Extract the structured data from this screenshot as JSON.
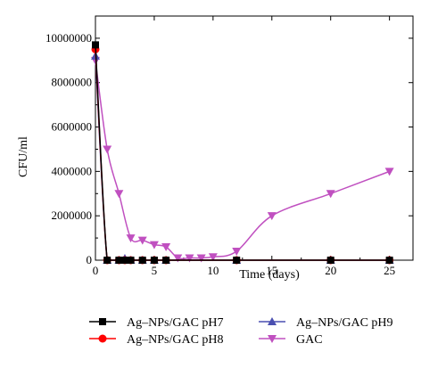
{
  "chart_data": {
    "type": "line",
    "xlabel": "Time (days)",
    "ylabel": "CFU/ml",
    "xlim": [
      0,
      27
    ],
    "ylim": [
      0,
      11000000
    ],
    "x_ticks": [
      "0",
      "5",
      "10",
      "15",
      "20",
      "25"
    ],
    "y_ticks": [
      "0",
      "2000000",
      "4000000",
      "6000000",
      "8000000",
      "10000000"
    ],
    "grid": false,
    "legend_position": "bottom",
    "series": [
      {
        "name": "Ag–NPs/GAC pH7",
        "color": "#000000",
        "marker": "square",
        "x": [
          0,
          1,
          2,
          2.5,
          3,
          4,
          5,
          6,
          12,
          20,
          25
        ],
        "y": [
          9700000,
          0,
          0,
          0,
          0,
          0,
          0,
          0,
          0,
          0,
          0
        ]
      },
      {
        "name": "Ag–NPs/GAC pH8",
        "color": "#ff0000",
        "marker": "circle",
        "x": [
          0,
          1,
          2,
          2.5,
          3,
          4,
          5,
          6,
          12,
          20,
          25
        ],
        "y": [
          9500000,
          0,
          0,
          0,
          0,
          0,
          0,
          0,
          0,
          0,
          0
        ]
      },
      {
        "name": "Ag–NPs/GAC pH9",
        "color": "#4a4fb0",
        "marker": "triangle-up",
        "x": [
          0,
          1,
          2,
          2.5,
          3,
          4,
          5,
          6,
          12,
          20,
          25
        ],
        "y": [
          9200000,
          0,
          0,
          80000,
          0,
          0,
          0,
          0,
          0,
          0,
          0
        ]
      },
      {
        "name": "GAC",
        "color": "#c050c0",
        "marker": "triangle-down",
        "x": [
          0,
          1,
          2,
          3,
          4,
          5,
          6,
          7,
          8,
          9,
          10,
          12,
          15,
          20,
          25
        ],
        "y": [
          9000000,
          5000000,
          3000000,
          1000000,
          900000,
          700000,
          600000,
          100000,
          100000,
          100000,
          150000,
          400000,
          2000000,
          3000000,
          4000000
        ]
      }
    ]
  }
}
